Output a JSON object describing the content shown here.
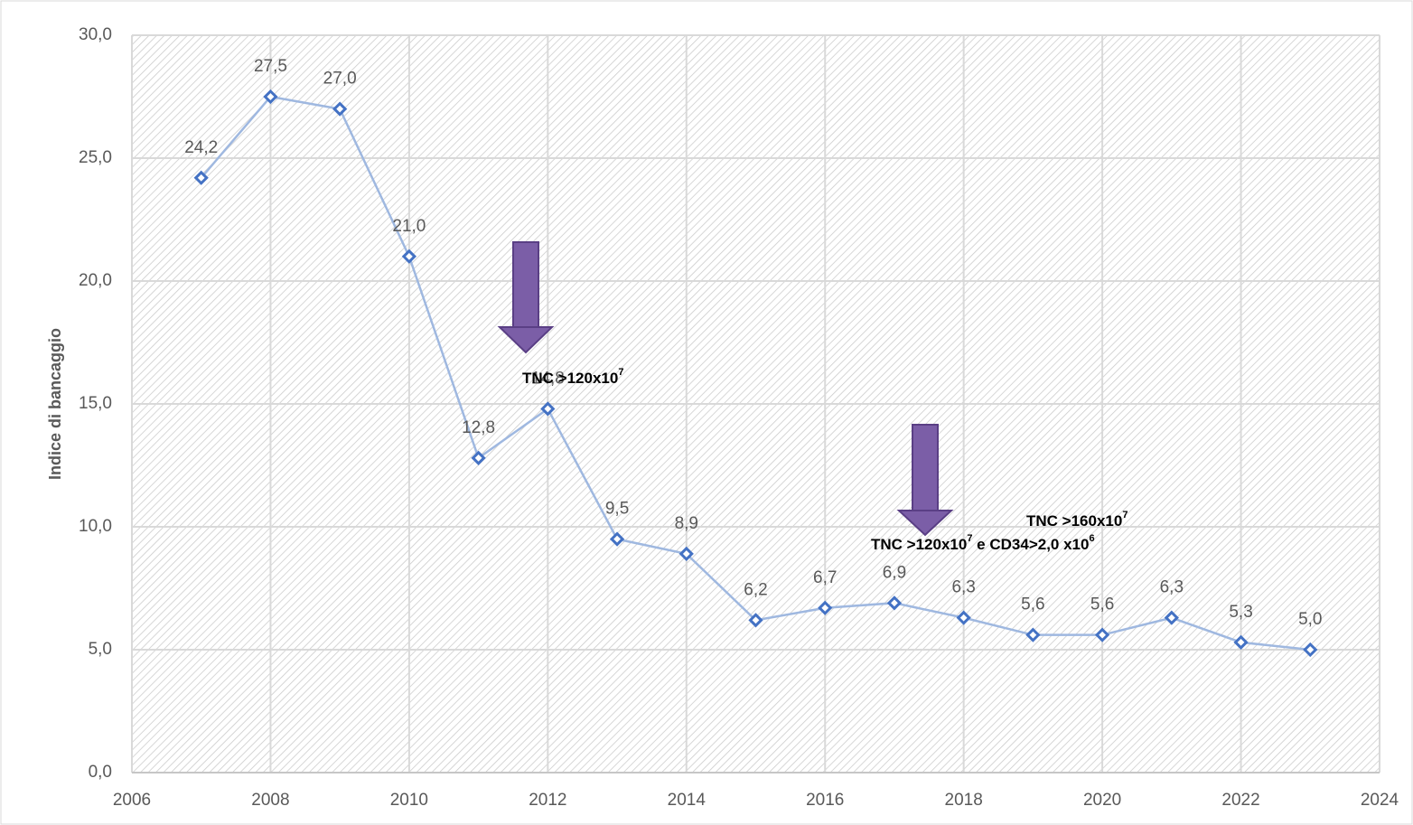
{
  "chart_data": {
    "type": "line",
    "y_label": "Indice di bancaggio",
    "x": [
      2007,
      2008,
      2009,
      2010,
      2011,
      2012,
      2013,
      2014,
      2015,
      2016,
      2017,
      2018,
      2019,
      2020,
      2021,
      2022,
      2023
    ],
    "series": [
      {
        "color": "#4472c4",
        "values": [
          24.2,
          27.5,
          27.0,
          21.0,
          12.8,
          14.8,
          9.5,
          8.9,
          6.2,
          6.7,
          6.9,
          6.3,
          5.6,
          5.6,
          6.3,
          5.3,
          5.0
        ],
        "value_labels": [
          "24,2",
          "27,5",
          "27,0",
          "21,0",
          "12,8",
          "14,8",
          "9,5",
          "8,9",
          "6,2",
          "6,7",
          "6,9",
          "6,3",
          "5,6",
          "5,6",
          "6,3",
          "5,3",
          "5,0"
        ]
      }
    ],
    "xlim": [
      2006,
      2024
    ],
    "xticks": [
      2006,
      2008,
      2010,
      2012,
      2014,
      2016,
      2018,
      2020,
      2022,
      2024
    ],
    "ylim": [
      0,
      30
    ],
    "yticks": [
      {
        "value": 0,
        "label": "0,0"
      },
      {
        "value": 5,
        "label": "5,0"
      },
      {
        "value": 10,
        "label": "10,0"
      },
      {
        "value": 15,
        "label": "15,0"
      },
      {
        "value": 20,
        "label": "20,0"
      },
      {
        "value": 25,
        "label": "25,0"
      },
      {
        "value": 30,
        "label": "30,0"
      }
    ],
    "grid": true,
    "annotations": [
      {
        "parts": [
          {
            "text": "TNC >120x10",
            "sup": "7"
          }
        ]
      },
      {
        "parts": [
          {
            "text": "TNC >160x10",
            "sup": "7"
          }
        ]
      },
      {
        "parts": [
          {
            "text": "TNC >120x10",
            "sup": "7"
          },
          {
            "text": " e CD34>2,0 x10",
            "sup": "6"
          }
        ]
      }
    ]
  }
}
